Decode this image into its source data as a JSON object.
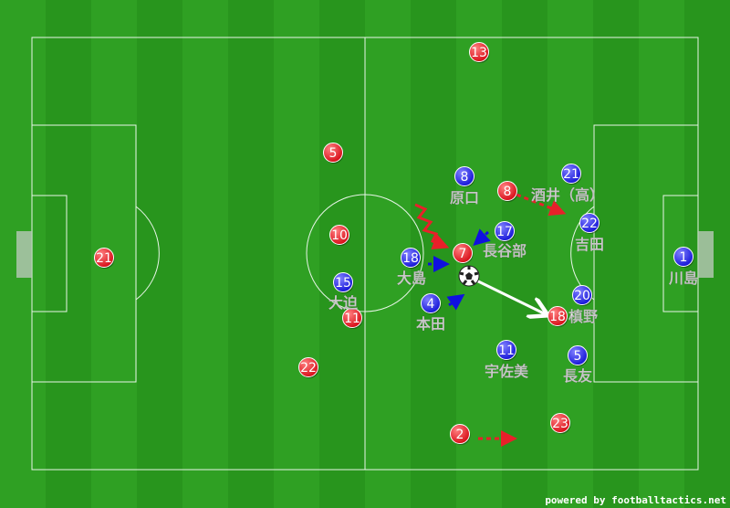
{
  "pitch": {
    "grass_color": "#2a9a1e",
    "line_color": "#ffffff"
  },
  "teams": {
    "red": {
      "color": "#e8202a",
      "players": [
        {
          "number": "13"
        },
        {
          "number": "5"
        },
        {
          "number": "10"
        },
        {
          "number": "21"
        },
        {
          "number": "11"
        },
        {
          "number": "22"
        },
        {
          "number": "8"
        },
        {
          "number": "7"
        },
        {
          "number": "18"
        },
        {
          "number": "23"
        },
        {
          "number": "2"
        }
      ]
    },
    "blue": {
      "color": "#2a2aee",
      "players": [
        {
          "number": "8",
          "name": "原口"
        },
        {
          "number": "21",
          "name": "酒井（高）"
        },
        {
          "number": "17",
          "name": "長谷部"
        },
        {
          "number": "22",
          "name": "吉田"
        },
        {
          "number": "18",
          "name": "大島"
        },
        {
          "number": "15",
          "name": "大迫"
        },
        {
          "number": "4",
          "name": "本田"
        },
        {
          "number": "20",
          "name": "槙野"
        },
        {
          "number": "11",
          "name": "宇佐美"
        },
        {
          "number": "5",
          "name": "長友"
        },
        {
          "number": "1",
          "name": "川島"
        }
      ]
    }
  },
  "ball": {
    "icon": "soccer-ball-icon"
  },
  "credit": "powered by footballtactics.net"
}
